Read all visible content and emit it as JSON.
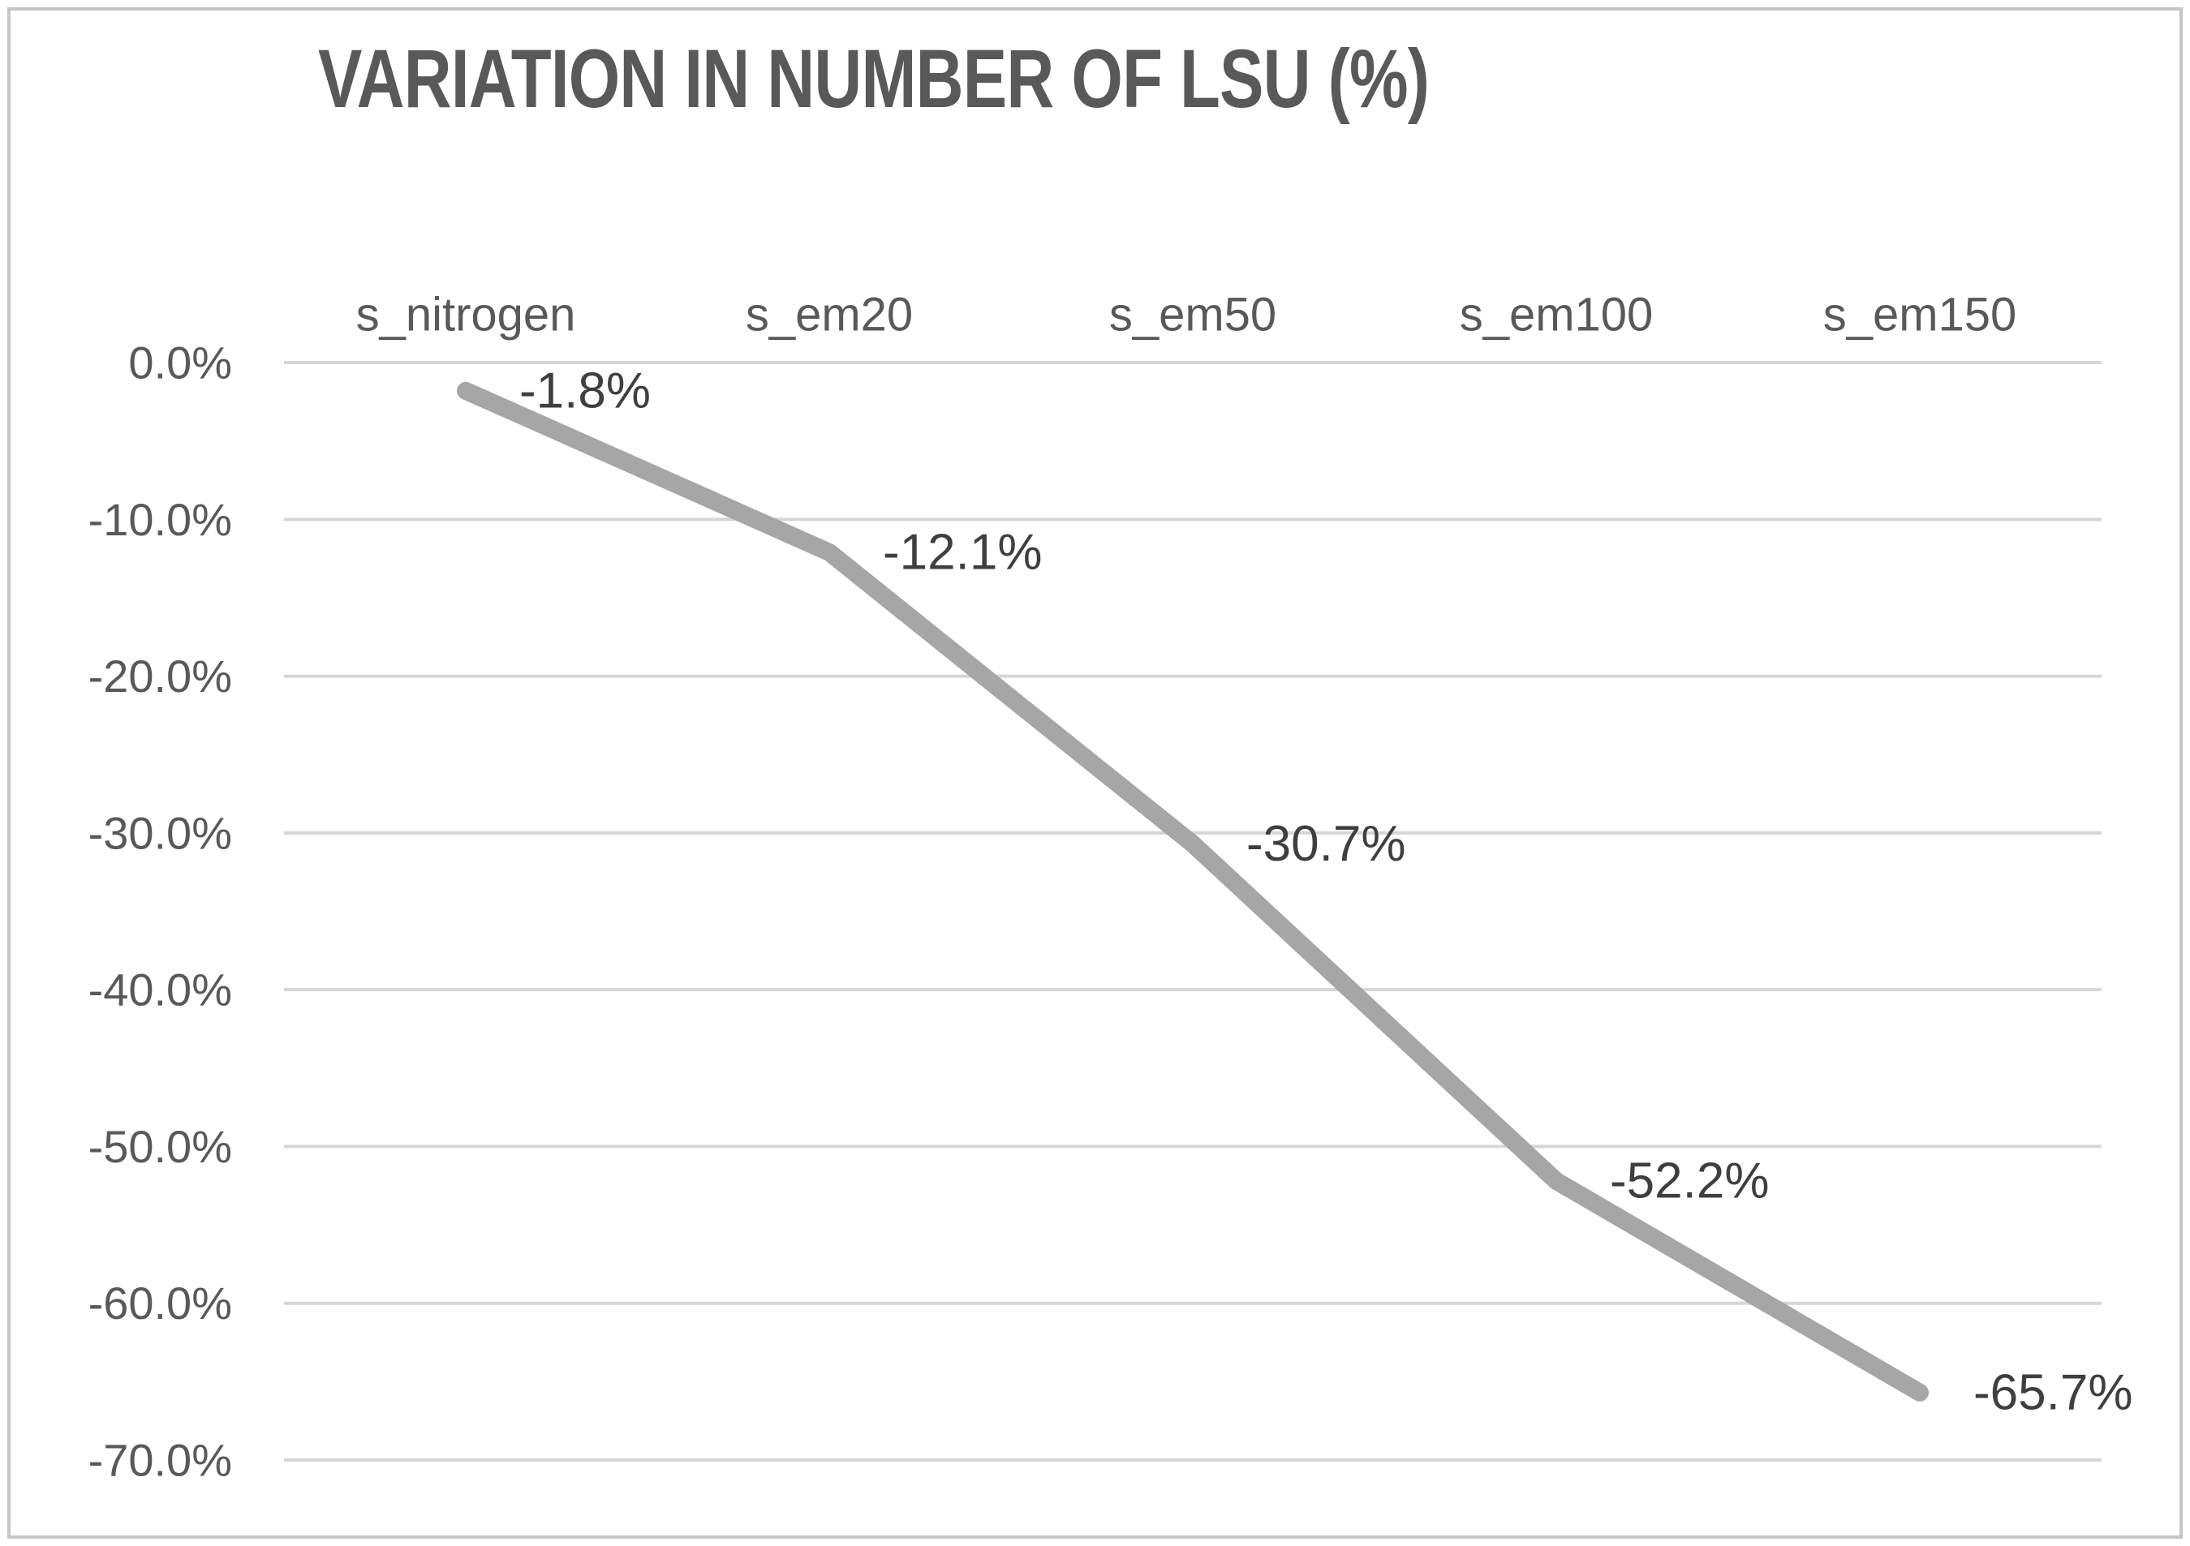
{
  "chart_data": {
    "type": "line",
    "title": "VARIATION IN NUMBER OF LSU (%)",
    "categories": [
      "s_nitrogen",
      "s_em20",
      "s_em50",
      "s_em100",
      "s_em150"
    ],
    "series": [
      {
        "name": "Variation in number of LSU",
        "values": [
          -1.8,
          -12.1,
          -30.7,
          -52.2,
          -65.7
        ]
      }
    ],
    "data_labels": [
      "-1.8%",
      "-12.1%",
      "-30.7%",
      "-52.2%",
      "-65.7%"
    ],
    "y_tick_labels": [
      "0.0%",
      "-10.0%",
      "-20.0%",
      "-30.0%",
      "-40.0%",
      "-50.0%",
      "-60.0%",
      "-70.0%"
    ],
    "y_ticks": [
      0,
      -10,
      -20,
      -30,
      -40,
      -50,
      -60,
      -70
    ],
    "ylim": [
      -70,
      0
    ],
    "xlabel": "",
    "ylabel": "",
    "grid": true,
    "legend_position": "none",
    "category_axis_position": "top",
    "colors": {
      "line": "#a6a6a6",
      "gridline": "#d6d6d6",
      "axis_text": "#595959",
      "data_label_text": "#3f3f3f",
      "title_text": "#595959",
      "frame_border": "#c6c6c6",
      "background": "#ffffff"
    }
  }
}
